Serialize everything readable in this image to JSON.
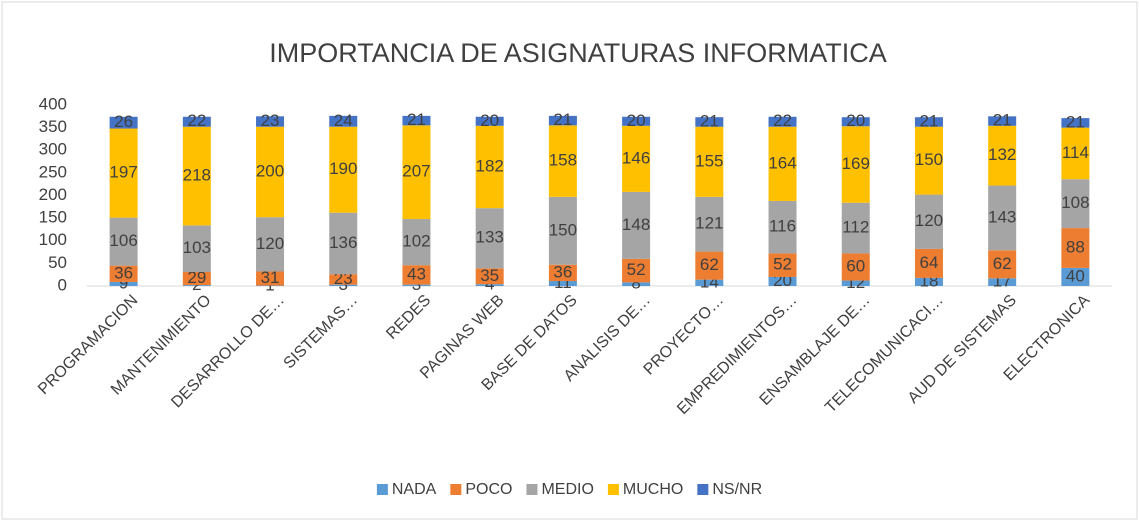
{
  "chart_data": {
    "type": "stacked_bar",
    "title": "IMPORTANCIA DE ASIGNATURAS INFORMATICA",
    "categories": [
      "PROGRAMACION",
      "MANTENIMIENTO",
      "DESARROLLO DE…",
      "SISTEMAS…",
      "REDES",
      "PAGINAS WEB",
      "BASE DE DATOS",
      "ANALISIS DE…",
      "PROYECTO…",
      "EMPREDIMIENTOS…",
      "ENSAMBLAJE DE…",
      "TELECOMUNICACI…",
      "AUD DE SISTEMAS",
      "ELECTRONICA"
    ],
    "series": [
      {
        "name": "NADA",
        "color": "#5b9bd5",
        "values": [
          9,
          2,
          1,
          3,
          3,
          4,
          11,
          8,
          14,
          20,
          12,
          18,
          17,
          40
        ]
      },
      {
        "name": "POCO",
        "color": "#ed7d31",
        "values": [
          36,
          29,
          31,
          23,
          43,
          35,
          36,
          52,
          62,
          52,
          60,
          64,
          62,
          88
        ]
      },
      {
        "name": "MEDIO",
        "color": "#a5a5a5",
        "values": [
          106,
          103,
          120,
          136,
          102,
          133,
          150,
          148,
          121,
          116,
          112,
          120,
          143,
          108
        ]
      },
      {
        "name": "MUCHO",
        "color": "#ffc000",
        "values": [
          197,
          218,
          200,
          190,
          207,
          182,
          158,
          146,
          155,
          164,
          169,
          150,
          132,
          114
        ]
      },
      {
        "name": "NS/NR",
        "color": "#4472c4",
        "values": [
          26,
          22,
          23,
          24,
          21,
          20,
          21,
          20,
          21,
          22,
          20,
          21,
          21,
          21
        ]
      }
    ],
    "ylim": [
      0,
      400
    ],
    "yticks": [
      0,
      50,
      100,
      150,
      200,
      250,
      300,
      350,
      400
    ],
    "grid": false,
    "legend": "bottom"
  }
}
